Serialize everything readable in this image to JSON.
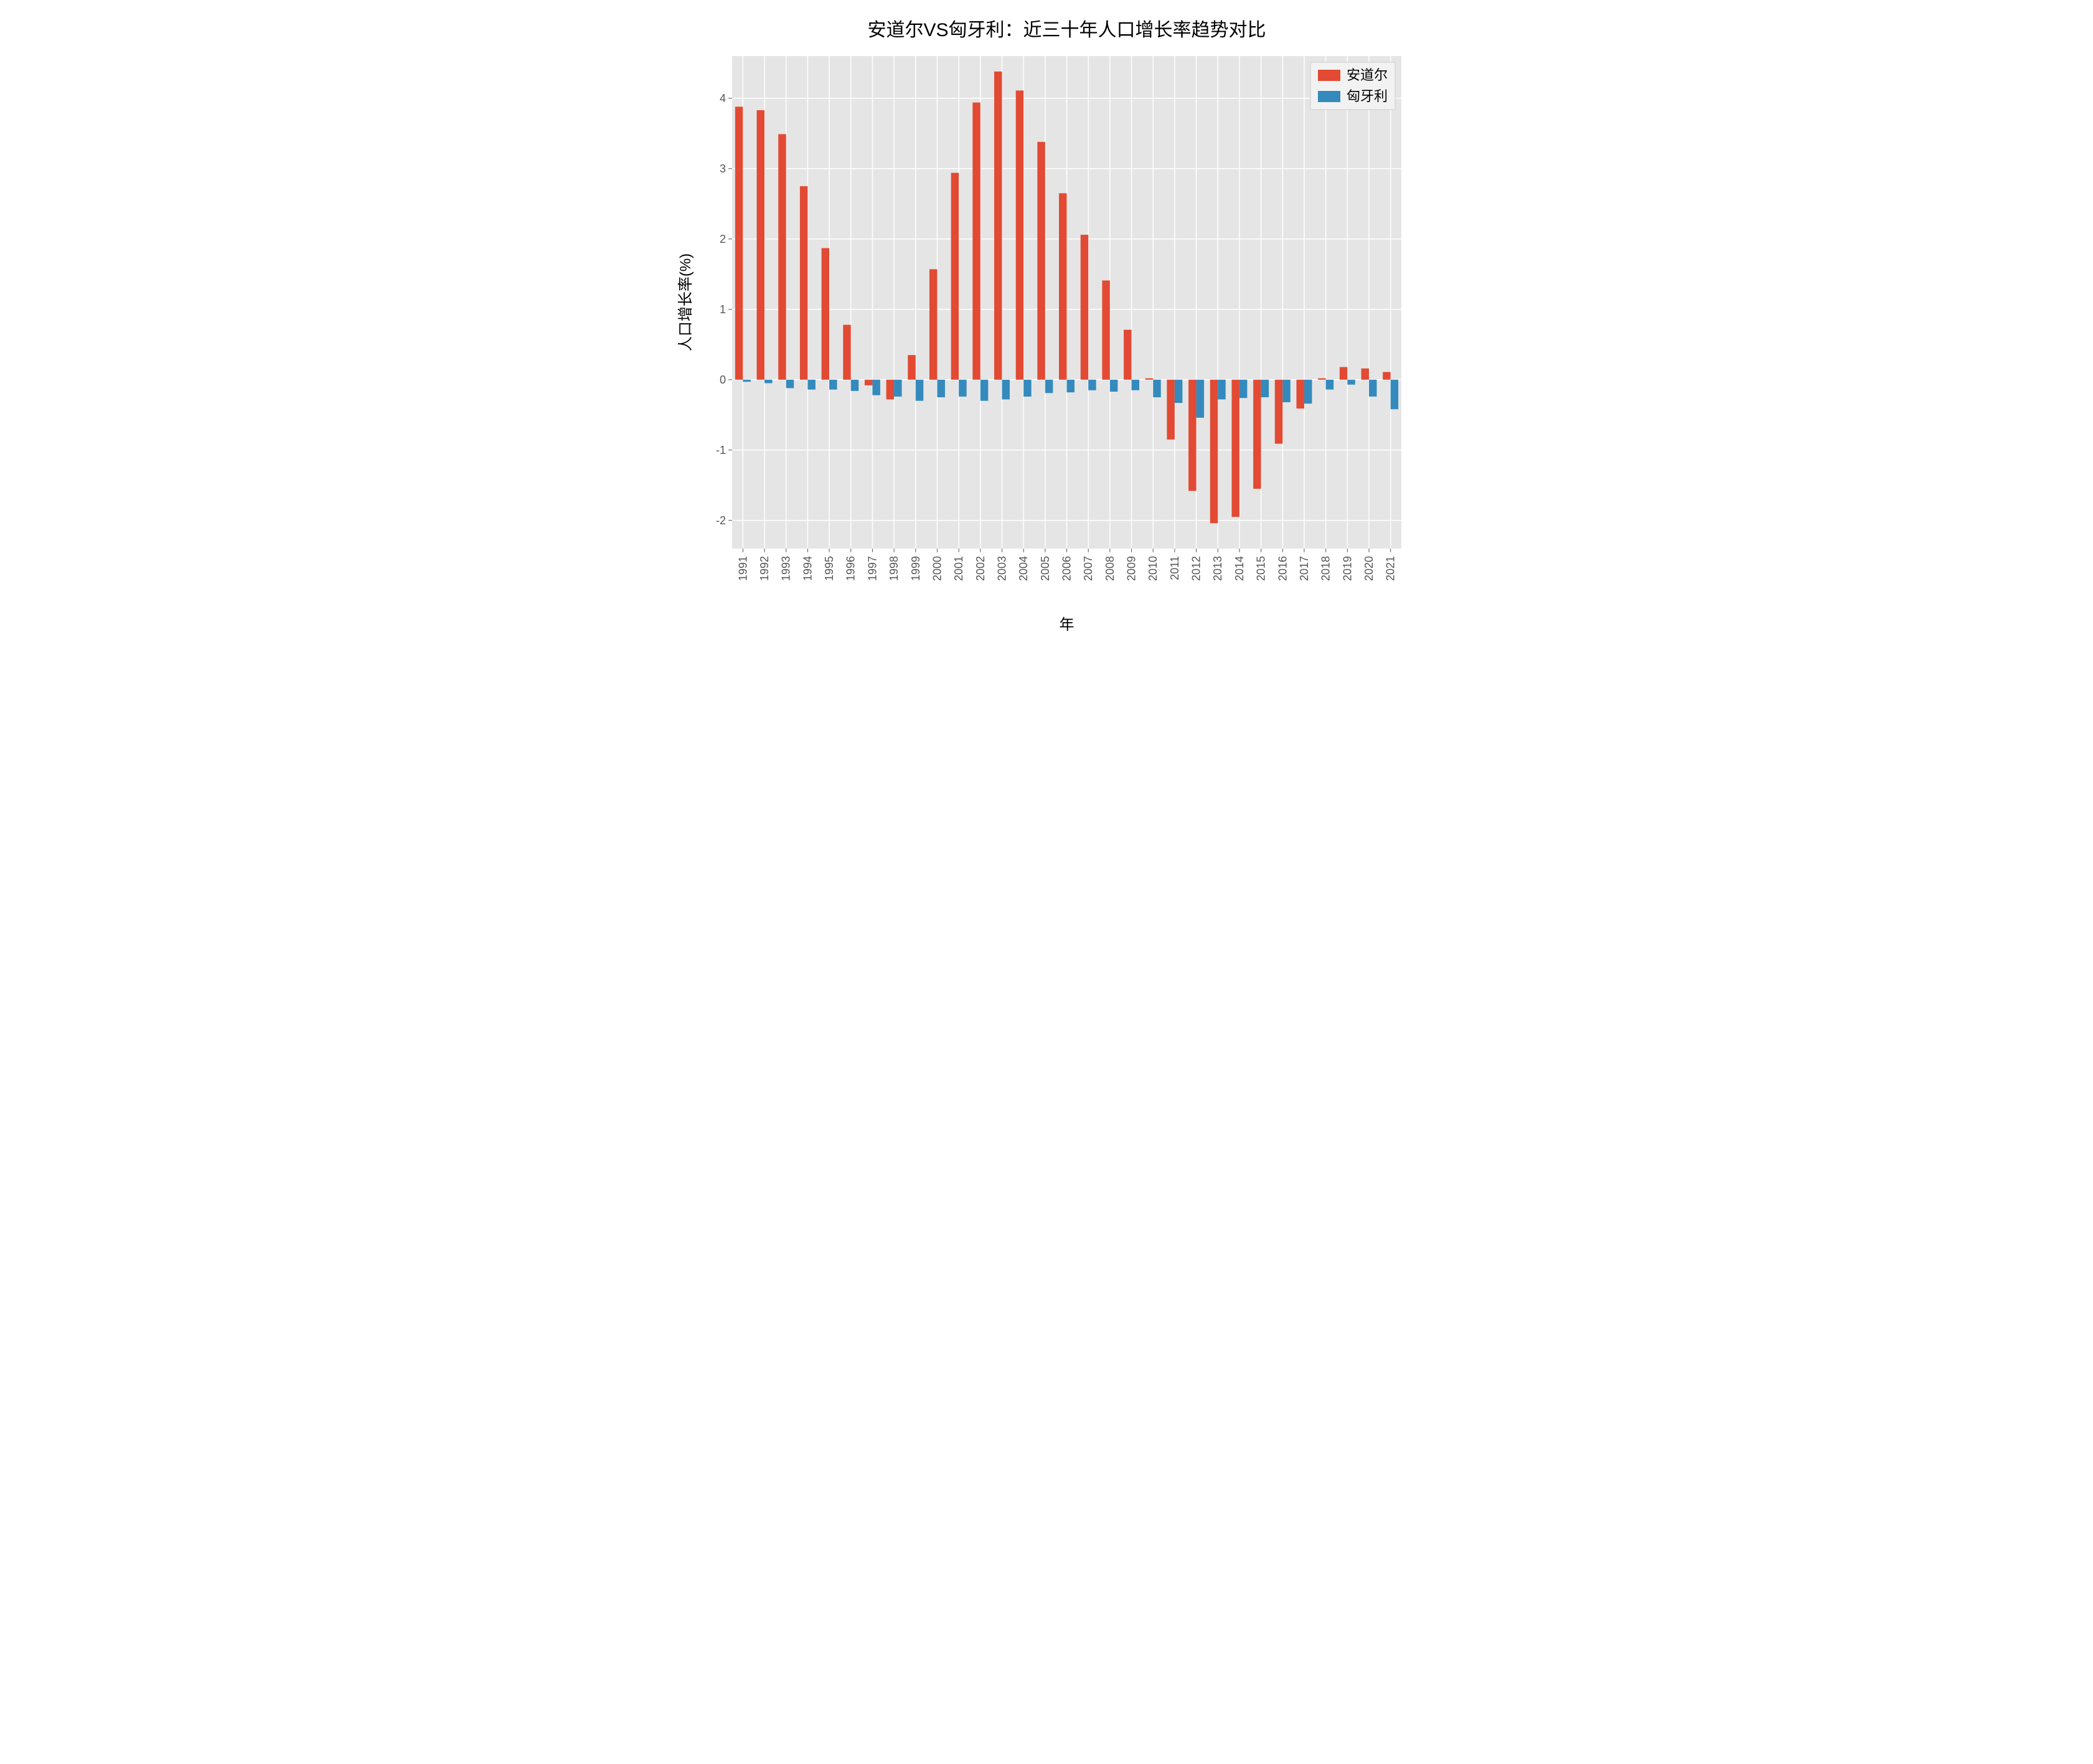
{
  "chart": {
    "type": "bar",
    "title": "安道尔VS匈牙利：近三十年人口增长率趋势对比",
    "xlabel": "年",
    "ylabel": "人口增长率(%)",
    "title_fontsize": 30,
    "label_fontsize": 24,
    "tick_fontsize": 18,
    "legend_fontsize": 22,
    "background_color": "#ffffff",
    "plot_background_color": "#e5e5e5",
    "grid_color": "#ffffff",
    "ylim": [
      -2.4,
      4.6
    ],
    "yticks": [
      -2,
      -1,
      0,
      1,
      2,
      3,
      4
    ],
    "categories": [
      "1991",
      "1992",
      "1993",
      "1994",
      "1995",
      "1996",
      "1997",
      "1998",
      "1999",
      "2000",
      "2001",
      "2002",
      "2003",
      "2004",
      "2005",
      "2006",
      "2007",
      "2008",
      "2009",
      "2010",
      "2011",
      "2012",
      "2013",
      "2014",
      "2015",
      "2016",
      "2017",
      "2018",
      "2019",
      "2020",
      "2021"
    ],
    "series": [
      {
        "name": "安道尔",
        "color": "#e24a33",
        "values": [
          3.88,
          3.83,
          3.49,
          2.75,
          1.87,
          0.78,
          -0.08,
          -0.28,
          0.35,
          1.57,
          2.94,
          3.94,
          4.38,
          4.11,
          3.38,
          2.65,
          2.06,
          1.41,
          0.71,
          0.02,
          -0.85,
          -1.58,
          -2.04,
          -1.95,
          -1.55,
          -0.91,
          -0.41,
          0.02,
          0.18,
          0.16,
          0.11
        ]
      },
      {
        "name": "匈牙利",
        "color": "#348abd",
        "values": [
          -0.03,
          -0.05,
          -0.12,
          -0.14,
          -0.14,
          -0.16,
          -0.22,
          -0.24,
          -0.3,
          -0.25,
          -0.24,
          -0.3,
          -0.28,
          -0.24,
          -0.19,
          -0.18,
          -0.15,
          -0.17,
          -0.15,
          -0.25,
          -0.33,
          -0.54,
          -0.28,
          -0.26,
          -0.25,
          -0.32,
          -0.34,
          -0.14,
          -0.07,
          -0.24,
          -0.42
        ]
      }
    ],
    "bar_group_width": 0.72,
    "legend_position": "upper right"
  }
}
